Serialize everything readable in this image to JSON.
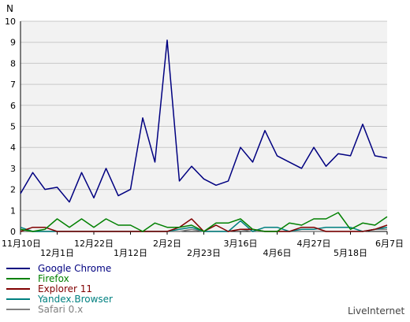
{
  "chart_data": {
    "type": "line",
    "ylabel": "N",
    "ylim": [
      0,
      10
    ],
    "yticks": [
      0,
      1,
      2,
      3,
      4,
      5,
      6,
      7,
      8,
      9,
      10
    ],
    "grid": "horizontal",
    "x_tick_labels": [
      "11月10日",
      "12月1日",
      "12月22日",
      "1月12日",
      "2月2日",
      "2月23日",
      "3月16日",
      "4月6日",
      "4月27日",
      "5月18日",
      "6月7日"
    ],
    "x_tick_index": [
      0,
      3,
      6,
      9,
      12,
      15,
      18,
      21,
      24,
      27,
      30
    ],
    "series": [
      {
        "name": "Google Chrome",
        "color": "#000080",
        "values": [
          1.8,
          2.8,
          2.0,
          2.1,
          1.4,
          2.8,
          1.6,
          3.0,
          1.7,
          2.0,
          5.4,
          3.3,
          9.1,
          2.4,
          3.1,
          2.5,
          2.2,
          2.4,
          4.0,
          3.3,
          4.8,
          3.6,
          3.3,
          3.0,
          4.0,
          3.1,
          3.7,
          3.6,
          5.1,
          3.6,
          3.5
        ]
      },
      {
        "name": "Firefox",
        "color": "#008000",
        "values": [
          0.1,
          0.0,
          0.1,
          0.6,
          0.2,
          0.6,
          0.2,
          0.6,
          0.3,
          0.3,
          0.0,
          0.4,
          0.2,
          0.2,
          0.3,
          0.0,
          0.4,
          0.4,
          0.6,
          0.1,
          0.0,
          0.0,
          0.4,
          0.3,
          0.6,
          0.6,
          0.9,
          0.1,
          0.4,
          0.3,
          0.7
        ]
      },
      {
        "name": "Explorer 11",
        "color": "#800000",
        "values": [
          0.0,
          0.2,
          0.2,
          0.0,
          0.0,
          0.0,
          0.0,
          0.0,
          0.0,
          0.0,
          0.0,
          0.0,
          0.0,
          0.2,
          0.6,
          0.0,
          0.3,
          0.0,
          0.1,
          0.1,
          0.0,
          0.0,
          0.0,
          0.2,
          0.2,
          0.0,
          0.0,
          0.0,
          0.0,
          0.1,
          0.3
        ]
      },
      {
        "name": "Yandex.Browser",
        "color": "#008080",
        "values": [
          0.2,
          0.0,
          0.0,
          0.0,
          0.0,
          0.0,
          0.0,
          0.0,
          0.0,
          0.0,
          0.0,
          0.0,
          0.0,
          0.1,
          0.2,
          0.0,
          0.0,
          0.0,
          0.5,
          0.0,
          0.2,
          0.2,
          0.0,
          0.1,
          0.1,
          0.2,
          0.2,
          0.2,
          0.0,
          0.1,
          0.2
        ]
      },
      {
        "name": "Safari 0.x",
        "color": "#808080",
        "values": [
          0.0,
          0.0,
          0.0,
          0.0,
          0.0,
          0.0,
          0.0,
          0.0,
          0.0,
          0.0,
          0.0,
          0.0,
          0.0,
          0.0,
          0.1,
          0.0,
          0.0,
          0.0,
          0.1,
          0.0,
          0.0,
          0.0,
          0.0,
          0.0,
          0.0,
          0.0,
          0.0,
          0.0,
          0.0,
          0.1,
          0.1
        ]
      }
    ],
    "legend_position": "bottom-left"
  },
  "brand": "LiveInternet"
}
